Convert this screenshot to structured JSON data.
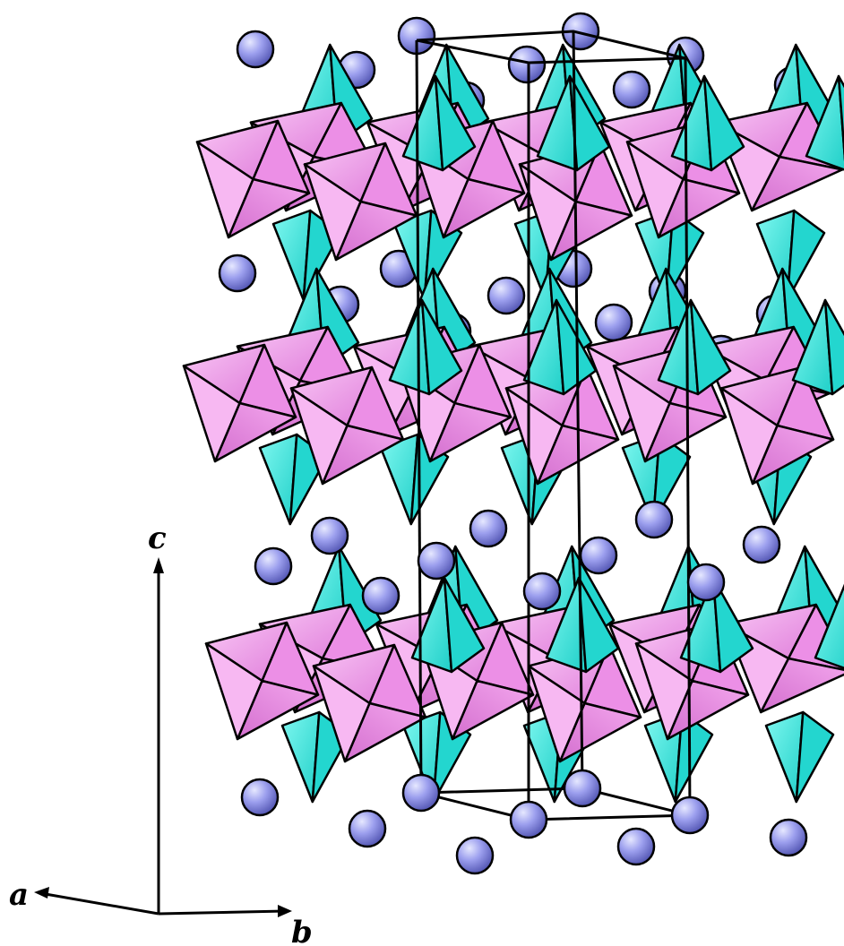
{
  "axes": {
    "a_label": "a",
    "b_label": "b",
    "c_label": "c"
  },
  "colors": {
    "octahedron_light": "#f7b8f2",
    "octahedron_mid": "#ec8fe6",
    "octahedron_dark": "#d977d6",
    "tetrahedron_light": "#5ff5ec",
    "tetrahedron_dark": "#23d6cf",
    "atom_light": "#dde0ff",
    "atom_mid": "#8f92e8",
    "atom_dark": "#5557b8",
    "outline": "#000000"
  },
  "structure": {
    "octahedral_layers": 3,
    "unit_cell_shown": true
  }
}
